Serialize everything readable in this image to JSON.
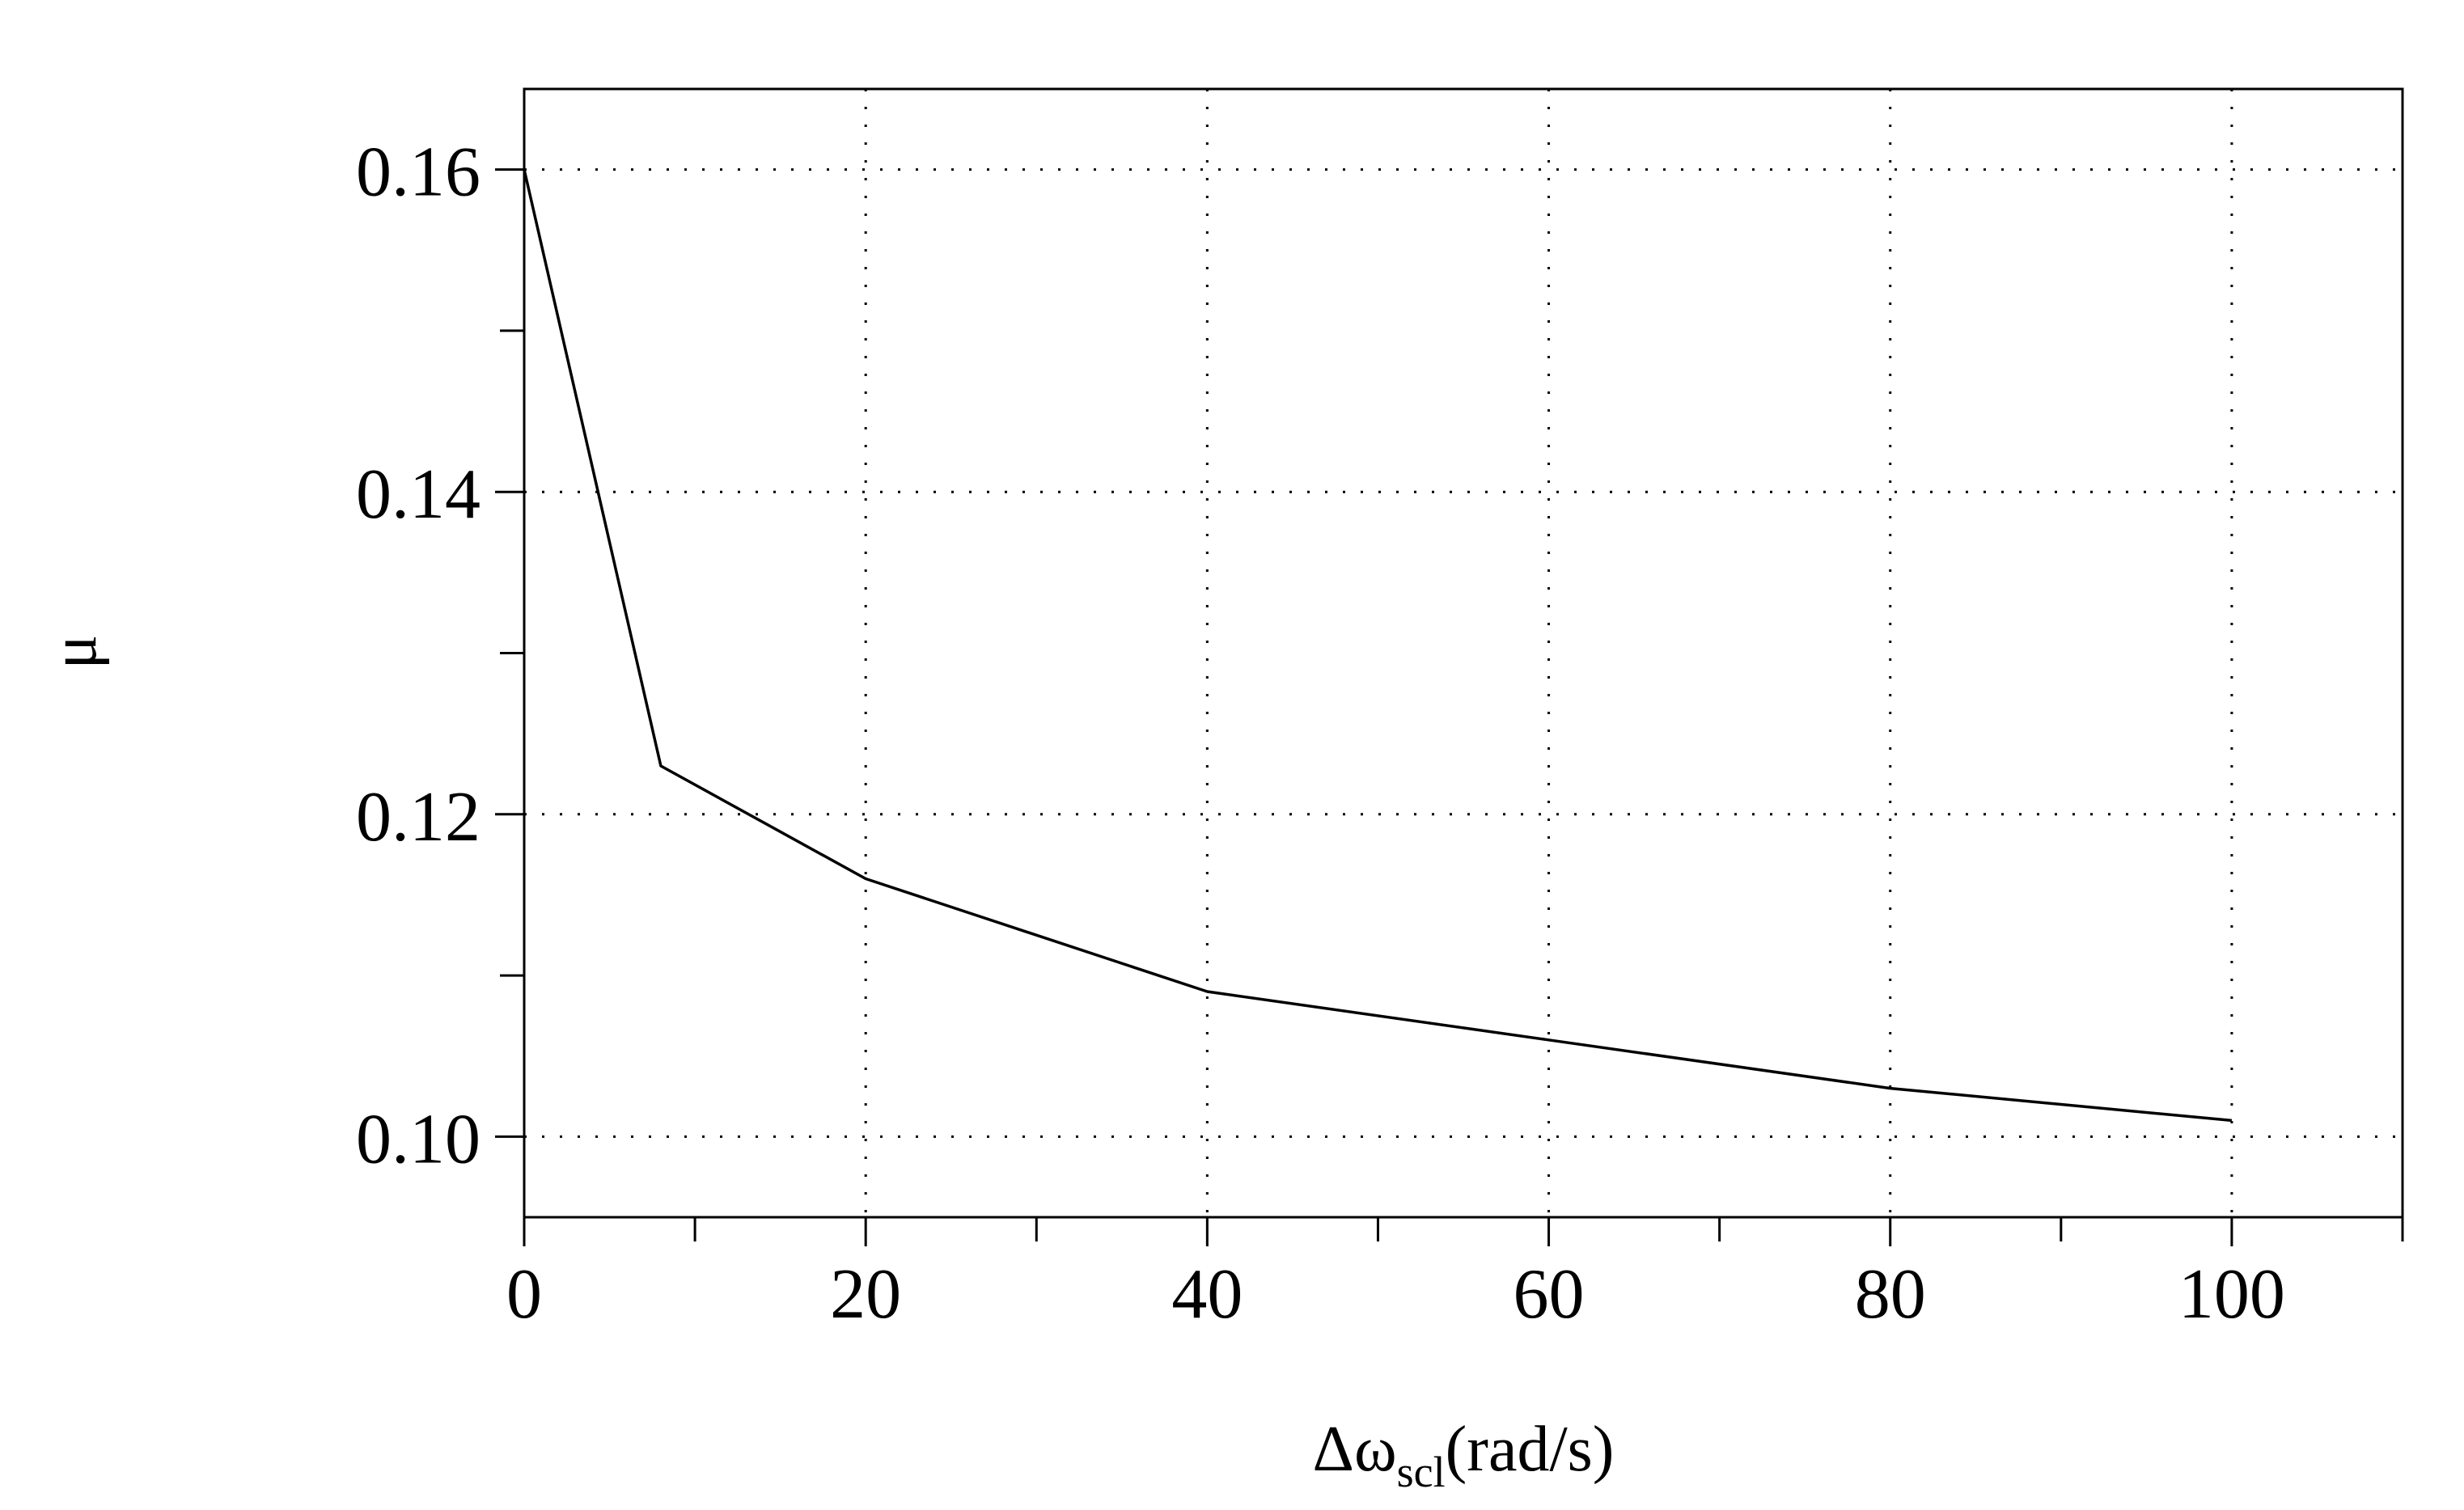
{
  "chart_data": {
    "type": "line",
    "title": "",
    "xlabel": {
      "prefix": "Δω",
      "subscript": "scl",
      "suffix": "(rad/s)"
    },
    "ylabel": "μ",
    "xlim": [
      0,
      110
    ],
    "ylim": [
      0.095,
      0.165
    ],
    "x_ticks": [
      0,
      20,
      40,
      60,
      80,
      100
    ],
    "x_tick_labels": [
      "0",
      "20",
      "40",
      "60",
      "80",
      "100"
    ],
    "x_minor_ticks": [
      10,
      30,
      50,
      70,
      90,
      110
    ],
    "y_ticks": [
      0.1,
      0.12,
      0.14,
      0.16
    ],
    "y_tick_labels": [
      "0.10",
      "0.12",
      "0.14",
      "0.16"
    ],
    "y_minor_ticks": [
      0.11,
      0.13,
      0.15
    ],
    "grid": true,
    "grid_style": "dotted",
    "legend": "none",
    "series": [
      {
        "x": [
          0,
          8,
          20,
          40,
          60,
          80,
          100
        ],
        "y": [
          0.16,
          0.123,
          0.116,
          0.109,
          0.106,
          0.103,
          0.101
        ],
        "color": "#000000"
      }
    ]
  }
}
